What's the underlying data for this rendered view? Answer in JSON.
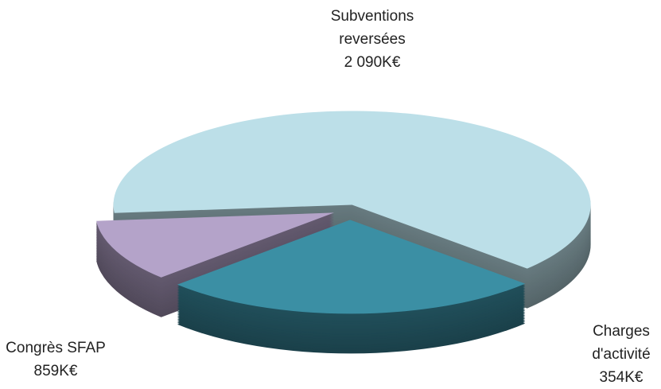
{
  "chart_data": {
    "type": "pie",
    "categories": [
      "Subventions reversées",
      "Congrès SFAP",
      "Charges d'activité"
    ],
    "values": [
      2090,
      859,
      354
    ],
    "value_labels": [
      "2 090K€",
      "859K€",
      "354K€"
    ],
    "colors": [
      "#bcdfe8",
      "#3b8fa4",
      "#b4a3c9"
    ]
  }
}
